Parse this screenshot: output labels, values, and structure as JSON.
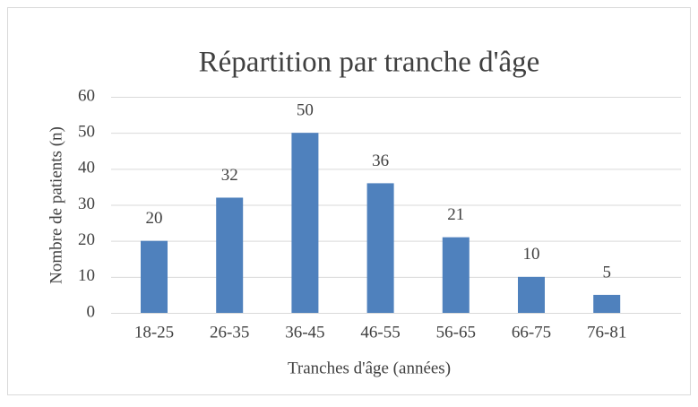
{
  "chart_data": {
    "type": "bar",
    "title": "Répartition par tranche d'âge",
    "x_label": "Tranches d'âge (années)",
    "y_label": "Nombre de patients (n)",
    "categories": [
      "18-25",
      "26-35",
      "36-45",
      "46-55",
      "56-65",
      "66-75",
      "76-81"
    ],
    "values": [
      20,
      32,
      50,
      36,
      21,
      10,
      5
    ],
    "color": "#4f81bd",
    "ylim": [
      0,
      60
    ],
    "yticks": [
      0,
      10,
      20,
      30,
      40,
      50,
      60
    ],
    "grid": true
  }
}
